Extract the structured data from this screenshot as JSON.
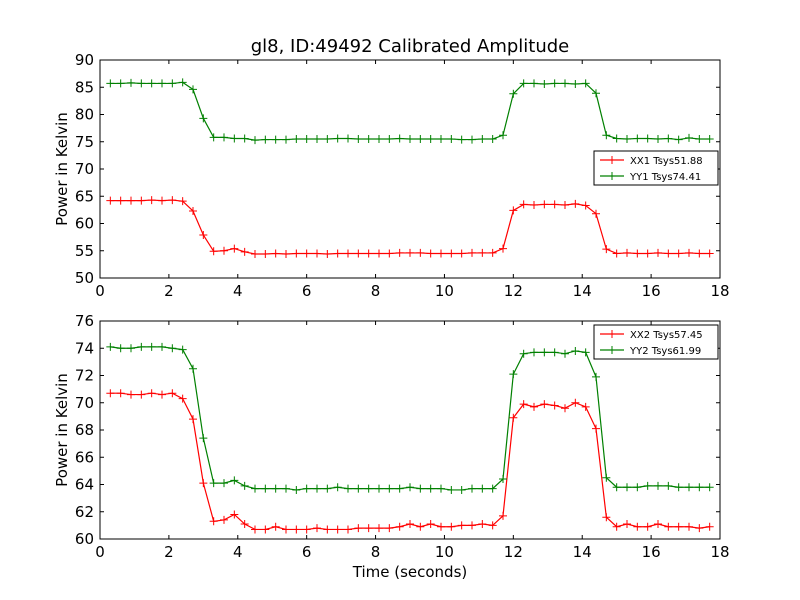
{
  "figure": {
    "title": "gl8, ID:49492 Calibrated Amplitude",
    "xlabel": "Time (seconds)"
  },
  "chart_data": [
    {
      "type": "line",
      "title": "gl8, ID:49492 Calibrated Amplitude",
      "xlabel": "",
      "ylabel": "Power in Kelvin",
      "xlim": [
        0,
        18
      ],
      "ylim": [
        50,
        90
      ],
      "xticks": [
        0,
        2,
        4,
        6,
        8,
        10,
        12,
        14,
        16,
        18
      ],
      "yticks": [
        50,
        55,
        60,
        65,
        70,
        75,
        80,
        85,
        90
      ],
      "grid": false,
      "legend": "center-right",
      "x": [
        0.3,
        0.6,
        0.9,
        1.2,
        1.5,
        1.8,
        2.1,
        2.4,
        2.7,
        3.0,
        3.3,
        3.6,
        3.9,
        4.2,
        4.5,
        4.8,
        5.1,
        5.4,
        5.7,
        6.0,
        6.3,
        6.6,
        6.9,
        7.2,
        7.5,
        7.8,
        8.1,
        8.4,
        8.7,
        9.0,
        9.3,
        9.6,
        9.9,
        10.2,
        10.5,
        10.8,
        11.1,
        11.4,
        11.7,
        12.0,
        12.3,
        12.6,
        12.9,
        13.2,
        13.5,
        13.8,
        14.1,
        14.4,
        14.7,
        15.0,
        15.3,
        15.6,
        15.9,
        16.2,
        16.5,
        16.8,
        17.1,
        17.4,
        17.7
      ],
      "series": [
        {
          "name": "XX1 Tsys51.88",
          "color": "#ff0000",
          "values": [
            64.2,
            64.2,
            64.2,
            64.2,
            64.3,
            64.2,
            64.3,
            64.1,
            62.3,
            57.9,
            54.9,
            55.0,
            55.4,
            54.8,
            54.4,
            54.4,
            54.5,
            54.4,
            54.5,
            54.5,
            54.5,
            54.4,
            54.5,
            54.5,
            54.5,
            54.5,
            54.5,
            54.5,
            54.6,
            54.6,
            54.6,
            54.5,
            54.5,
            54.5,
            54.5,
            54.6,
            54.6,
            54.6,
            55.4,
            62.4,
            63.5,
            63.4,
            63.5,
            63.5,
            63.4,
            63.6,
            63.3,
            61.8,
            55.3,
            54.5,
            54.6,
            54.5,
            54.5,
            54.6,
            54.5,
            54.5,
            54.6,
            54.5,
            54.5
          ]
        },
        {
          "name": "YY1 Tsys74.41",
          "color": "#008000",
          "values": [
            85.7,
            85.7,
            85.8,
            85.7,
            85.7,
            85.7,
            85.7,
            85.9,
            84.6,
            79.3,
            75.8,
            75.8,
            75.6,
            75.6,
            75.3,
            75.4,
            75.4,
            75.4,
            75.5,
            75.5,
            75.5,
            75.5,
            75.6,
            75.6,
            75.5,
            75.5,
            75.5,
            75.5,
            75.6,
            75.5,
            75.5,
            75.5,
            75.5,
            75.5,
            75.4,
            75.4,
            75.5,
            75.5,
            76.2,
            83.8,
            85.7,
            85.7,
            85.6,
            85.7,
            85.7,
            85.6,
            85.7,
            83.9,
            76.2,
            75.6,
            75.5,
            75.6,
            75.6,
            75.5,
            75.6,
            75.4,
            75.7,
            75.5,
            75.5
          ]
        }
      ]
    },
    {
      "type": "line",
      "title": "",
      "xlabel": "Time (seconds)",
      "ylabel": "Power in Kelvin",
      "xlim": [
        0,
        18
      ],
      "ylim": [
        60,
        76
      ],
      "xticks": [
        0,
        2,
        4,
        6,
        8,
        10,
        12,
        14,
        16,
        18
      ],
      "yticks": [
        60,
        62,
        64,
        66,
        68,
        70,
        72,
        74,
        76
      ],
      "grid": false,
      "legend": "top-right",
      "x": [
        0.3,
        0.6,
        0.9,
        1.2,
        1.5,
        1.8,
        2.1,
        2.4,
        2.7,
        3.0,
        3.3,
        3.6,
        3.9,
        4.2,
        4.5,
        4.8,
        5.1,
        5.4,
        5.7,
        6.0,
        6.3,
        6.6,
        6.9,
        7.2,
        7.5,
        7.8,
        8.1,
        8.4,
        8.7,
        9.0,
        9.3,
        9.6,
        9.9,
        10.2,
        10.5,
        10.8,
        11.1,
        11.4,
        11.7,
        12.0,
        12.3,
        12.6,
        12.9,
        13.2,
        13.5,
        13.8,
        14.1,
        14.4,
        14.7,
        15.0,
        15.3,
        15.6,
        15.9,
        16.2,
        16.5,
        16.8,
        17.1,
        17.4,
        17.7
      ],
      "series": [
        {
          "name": "XX2 Tsys57.45",
          "color": "#ff0000",
          "values": [
            70.7,
            70.7,
            70.6,
            70.6,
            70.7,
            70.6,
            70.7,
            70.3,
            68.8,
            64.1,
            61.3,
            61.4,
            61.8,
            61.1,
            60.7,
            60.7,
            60.9,
            60.7,
            60.7,
            60.7,
            60.8,
            60.7,
            60.7,
            60.7,
            60.8,
            60.8,
            60.8,
            60.8,
            60.9,
            61.1,
            60.9,
            61.1,
            60.9,
            60.9,
            61.0,
            61.0,
            61.1,
            61.0,
            61.7,
            68.9,
            69.9,
            69.7,
            69.9,
            69.8,
            69.6,
            70.0,
            69.7,
            68.1,
            61.6,
            60.9,
            61.1,
            60.9,
            60.9,
            61.1,
            60.9,
            60.9,
            60.9,
            60.8,
            60.9
          ]
        },
        {
          "name": "YY2 Tsys61.99",
          "color": "#008000",
          "values": [
            74.1,
            74.0,
            74.0,
            74.1,
            74.1,
            74.1,
            74.0,
            73.9,
            72.5,
            67.4,
            64.1,
            64.1,
            64.3,
            63.9,
            63.7,
            63.7,
            63.7,
            63.7,
            63.6,
            63.7,
            63.7,
            63.7,
            63.8,
            63.7,
            63.7,
            63.7,
            63.7,
            63.7,
            63.7,
            63.8,
            63.7,
            63.7,
            63.7,
            63.6,
            63.6,
            63.7,
            63.7,
            63.7,
            64.4,
            72.1,
            73.6,
            73.7,
            73.7,
            73.7,
            73.6,
            73.8,
            73.7,
            71.9,
            64.5,
            63.8,
            63.8,
            63.8,
            63.9,
            63.9,
            63.9,
            63.8,
            63.8,
            63.8,
            63.8
          ]
        }
      ]
    }
  ]
}
